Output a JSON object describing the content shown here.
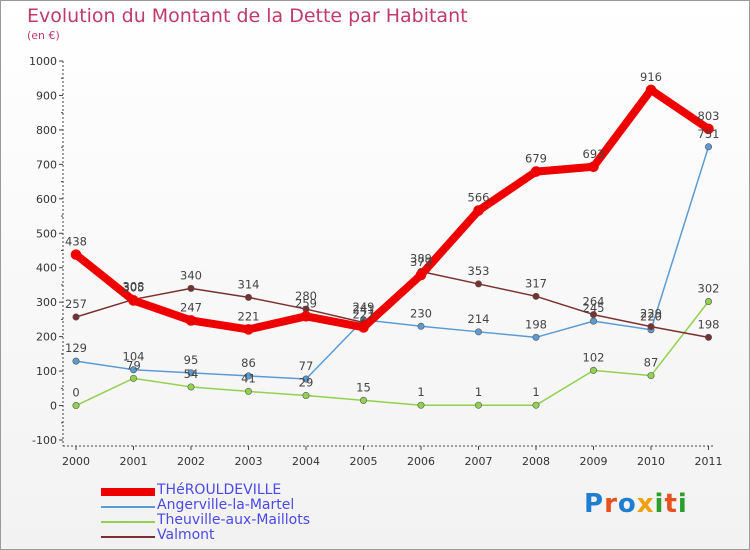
{
  "header": {
    "title": "Evolution du Montant de la Dette par Habitant",
    "subtitle": "(en €)"
  },
  "logo": {
    "text": "Proxiti",
    "colors": [
      "#1e7fd0",
      "#e8501e",
      "#1e7fd0",
      "#f0a010",
      "#2aa02a",
      "#e8501e",
      "#2aa02a"
    ]
  },
  "chart_data": {
    "type": "line",
    "title": "Evolution du Montant de la Dette par Habitant",
    "subtitle": "(en €)",
    "x": [
      "2000",
      "2001",
      "2002",
      "2003",
      "2004",
      "2005",
      "2006",
      "2007",
      "2008",
      "2009",
      "2010",
      "2011"
    ],
    "ylim": [
      -100,
      1000
    ],
    "yticks": [
      "-100",
      "0",
      "100",
      "200",
      "300",
      "400",
      "500",
      "600",
      "700",
      "800",
      "900",
      "1000"
    ],
    "grid": false,
    "legend_position": "bottom-left",
    "series": [
      {
        "name": "THéROULDEVILLE",
        "color": "#ee0000",
        "values": [
          438,
          305,
          247,
          221,
          259,
          227,
          379,
          566,
          679,
          693,
          916,
          803
        ],
        "labels": [
          "438",
          "305",
          "247",
          "221",
          "259",
          "227",
          "379",
          "566",
          "679",
          "693",
          "916",
          "803"
        ]
      },
      {
        "name": "Angerville-la-Martel",
        "color": "#5b9bd5",
        "values": [
          129,
          104,
          95,
          86,
          77,
          249,
          230,
          214,
          198,
          245,
          220,
          751
        ],
        "labels": [
          "129",
          "104",
          "95",
          "86",
          "77",
          "249",
          "230",
          "214",
          "198",
          "245",
          "220",
          "751"
        ]
      },
      {
        "name": "Theuville-aux-Maillots",
        "color": "#92d050",
        "values": [
          0,
          79,
          54,
          41,
          29,
          15,
          1,
          1,
          1,
          102,
          87,
          302
        ],
        "labels": [
          "0",
          "79",
          "54",
          "41",
          "29",
          "15",
          "1",
          "1",
          "1",
          "102",
          "87",
          "302"
        ]
      },
      {
        "name": "Valmont",
        "color": "#7b3030",
        "values": [
          257,
          308,
          340,
          314,
          280,
          241,
          389,
          353,
          317,
          264,
          229,
          198
        ],
        "labels": [
          "257",
          "308",
          "340",
          "314",
          "280",
          "241",
          "389",
          "353",
          "317",
          "264",
          "229",
          "198"
        ]
      }
    ]
  }
}
